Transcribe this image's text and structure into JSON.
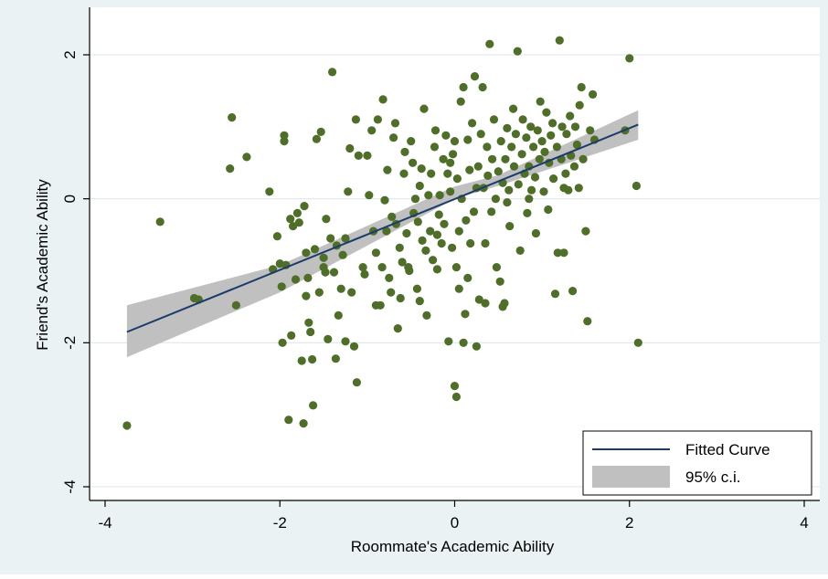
{
  "chart_data": {
    "type": "scatter",
    "xlabel": "Roommate's Academic Ability",
    "ylabel": "Friend's Academic Ability",
    "xlim": [
      -4,
      4
    ],
    "ylim": [
      -4,
      2.2
    ],
    "xticks": [
      "-4",
      "-2",
      "0",
      "2",
      "4"
    ],
    "yticks": [
      "-4",
      "-2",
      "0",
      "2"
    ],
    "xtick_values": [
      -4,
      -2,
      0,
      2,
      4
    ],
    "ytick_values": [
      -4,
      -2,
      0,
      2
    ],
    "grid": "horizontal",
    "legend_position": "bottom-right",
    "legend": [
      {
        "label": "Fitted Curve",
        "kind": "line",
        "color": "#1a3b6b"
      },
      {
        "label": "95% c.i.",
        "kind": "band",
        "color": "#c0c0c0"
      }
    ],
    "colors": {
      "points": "#4f6e2a",
      "fit_line": "#1a3b6b",
      "ci_band": "#c0c0c0",
      "outer_background": "#eaf2f3",
      "plot_background": "#ffffff",
      "grid": "#e2ecee"
    },
    "fitted_curve": {
      "x": [
        -3.75,
        2.1
      ],
      "y": [
        -1.85,
        1.03
      ]
    },
    "ci_band": {
      "x": [
        -3.75,
        -2,
        0,
        0.5,
        2.1
      ],
      "lower": [
        -2.2,
        -1.3,
        0,
        0.18,
        0.82
      ],
      "upper": [
        -1.48,
        -0.92,
        0.17,
        0.33,
        1.23
      ]
    },
    "series": [
      {
        "points": [
          [
            -3.75,
            -3.15
          ],
          [
            -3.37,
            -0.32
          ],
          [
            -2.98,
            -1.38
          ],
          [
            -2.93,
            -1.4
          ],
          [
            -2.57,
            0.42
          ],
          [
            -2.55,
            1.13
          ],
          [
            -2.5,
            -1.48
          ],
          [
            -2.38,
            0.58
          ],
          [
            -2.12,
            0.1
          ],
          [
            -2.08,
            -0.98
          ],
          [
            -2.03,
            -0.52
          ],
          [
            -2.0,
            -0.9
          ],
          [
            -1.98,
            -1.22
          ],
          [
            -1.97,
            -2.0
          ],
          [
            -1.95,
            0.8
          ],
          [
            -1.95,
            0.88
          ],
          [
            -1.93,
            -0.92
          ],
          [
            -1.9,
            -3.07
          ],
          [
            -1.88,
            -0.28
          ],
          [
            -1.87,
            -1.9
          ],
          [
            -1.85,
            -0.38
          ],
          [
            -1.82,
            -1.12
          ],
          [
            -1.8,
            -0.2
          ],
          [
            -1.78,
            -0.33
          ],
          [
            -1.75,
            -2.25
          ],
          [
            -1.73,
            -3.12
          ],
          [
            -1.72,
            -0.1
          ],
          [
            -1.7,
            -0.75
          ],
          [
            -1.68,
            -1.1
          ],
          [
            -1.67,
            -1.72
          ],
          [
            -1.65,
            -1.85
          ],
          [
            -1.63,
            -2.23
          ],
          [
            -1.62,
            -2.87
          ],
          [
            -1.6,
            -0.7
          ],
          [
            -1.58,
            0.83
          ],
          [
            -1.55,
            -1.3
          ],
          [
            -1.53,
            0.93
          ],
          [
            -1.5,
            -0.82
          ],
          [
            -1.48,
            -1.02
          ],
          [
            -1.47,
            -0.28
          ],
          [
            -1.45,
            -1.95
          ],
          [
            -1.42,
            -0.55
          ],
          [
            -1.4,
            1.76
          ],
          [
            -1.38,
            -1.02
          ],
          [
            -1.36,
            -2.22
          ],
          [
            -1.35,
            -0.65
          ],
          [
            -1.33,
            -1.62
          ],
          [
            -1.3,
            -1.25
          ],
          [
            -1.28,
            -0.78
          ],
          [
            -1.25,
            -1.98
          ],
          [
            -1.22,
            0.1
          ],
          [
            -1.2,
            0.7
          ],
          [
            -1.18,
            -1.3
          ],
          [
            -1.15,
            -2.05
          ],
          [
            -1.13,
            1.1
          ],
          [
            -1.12,
            -2.55
          ],
          [
            -1.1,
            0.6
          ],
          [
            -1.05,
            -0.95
          ],
          [
            -1.03,
            -1.05
          ],
          [
            -1.0,
            0.6
          ],
          [
            -0.98,
            0.05
          ],
          [
            -0.95,
            0.95
          ],
          [
            -0.93,
            -0.45
          ],
          [
            -0.9,
            -0.75
          ],
          [
            -0.88,
            1.1
          ],
          [
            -0.85,
            -1.48
          ],
          [
            -0.83,
            -0.95
          ],
          [
            -0.82,
            1.38
          ],
          [
            -0.8,
            -0.02
          ],
          [
            -0.78,
            -0.45
          ],
          [
            -0.77,
            0.4
          ],
          [
            -0.75,
            -1.1
          ],
          [
            -0.73,
            -1.3
          ],
          [
            -0.72,
            -0.25
          ],
          [
            -0.7,
            0.85
          ],
          [
            -0.68,
            1.05
          ],
          [
            -0.67,
            -0.35
          ],
          [
            -0.65,
            -1.8
          ],
          [
            -0.63,
            -0.68
          ],
          [
            -0.6,
            -0.88
          ],
          [
            -0.58,
            0.35
          ],
          [
            -0.57,
            0.65
          ],
          [
            -0.55,
            -0.48
          ],
          [
            -0.53,
            -0.95
          ],
          [
            -0.52,
            -1.0
          ],
          [
            -0.5,
            0.8
          ],
          [
            -0.48,
            0.5
          ],
          [
            -0.47,
            -0.2
          ],
          [
            -0.45,
            0.0
          ],
          [
            -0.43,
            -1.25
          ],
          [
            -0.42,
            -0.32
          ],
          [
            -0.4,
            0.18
          ],
          [
            -0.38,
            0.42
          ],
          [
            -0.37,
            -0.58
          ],
          [
            -0.35,
            1.25
          ],
          [
            -0.33,
            -0.72
          ],
          [
            -0.32,
            -1.62
          ],
          [
            -0.3,
            0.05
          ],
          [
            -0.28,
            -0.45
          ],
          [
            -0.27,
            0.35
          ],
          [
            -0.25,
            -0.85
          ],
          [
            -0.23,
            0.72
          ],
          [
            -0.22,
            0.95
          ],
          [
            -0.2,
            -0.5
          ],
          [
            -0.18,
            -0.22
          ],
          [
            -0.17,
            0.05
          ],
          [
            -0.15,
            -0.62
          ],
          [
            -0.13,
            0.55
          ],
          [
            -0.12,
            -0.35
          ],
          [
            -0.1,
            0.88
          ],
          [
            -0.08,
            0.35
          ],
          [
            -0.07,
            -1.98
          ],
          [
            -0.05,
            0.1
          ],
          [
            -0.03,
            -0.68
          ],
          [
            -0.02,
            0.62
          ],
          [
            0.0,
            -2.6
          ],
          [
            0.0,
            0.8
          ],
          [
            0.02,
            -2.75
          ],
          [
            0.02,
            -0.95
          ],
          [
            0.03,
            0.28
          ],
          [
            0.05,
            -0.45
          ],
          [
            0.07,
            1.35
          ],
          [
            0.08,
            0.0
          ],
          [
            0.1,
            -2.0
          ],
          [
            0.1,
            1.55
          ],
          [
            0.12,
            -1.6
          ],
          [
            0.13,
            -0.3
          ],
          [
            0.15,
            0.82
          ],
          [
            0.17,
            0.4
          ],
          [
            0.18,
            -0.62
          ],
          [
            0.2,
            1.05
          ],
          [
            0.22,
            -0.18
          ],
          [
            0.23,
            1.7
          ],
          [
            0.25,
            -2.05
          ],
          [
            0.25,
            0.15
          ],
          [
            0.27,
            0.45
          ],
          [
            0.28,
            -1.4
          ],
          [
            0.3,
            0.9
          ],
          [
            0.32,
            1.55
          ],
          [
            0.33,
            0.15
          ],
          [
            0.35,
            -0.62
          ],
          [
            0.37,
            0.72
          ],
          [
            0.38,
            0.32
          ],
          [
            0.4,
            2.15
          ],
          [
            0.42,
            -0.18
          ],
          [
            0.43,
            0.55
          ],
          [
            0.45,
            1.1
          ],
          [
            0.47,
            0.0
          ],
          [
            0.48,
            -0.95
          ],
          [
            0.5,
            0.38
          ],
          [
            0.52,
            -1.15
          ],
          [
            0.53,
            0.8
          ],
          [
            0.55,
            0.22
          ],
          [
            0.57,
            -1.45
          ],
          [
            0.58,
            0.55
          ],
          [
            0.6,
            0.98
          ],
          [
            0.62,
            0.12
          ],
          [
            0.63,
            -0.38
          ],
          [
            0.65,
            0.72
          ],
          [
            0.67,
            1.25
          ],
          [
            0.68,
            0.45
          ],
          [
            0.7,
            0.9
          ],
          [
            0.72,
            2.05
          ],
          [
            0.73,
            0.2
          ],
          [
            0.75,
            -0.72
          ],
          [
            0.77,
            0.62
          ],
          [
            0.78,
            1.1
          ],
          [
            0.8,
            0.35
          ],
          [
            0.82,
            0.85
          ],
          [
            0.83,
            -0.2
          ],
          [
            0.85,
            0.45
          ],
          [
            0.87,
            1.0
          ],
          [
            0.88,
            0.12
          ],
          [
            0.9,
            0.72
          ],
          [
            0.92,
            0.3
          ],
          [
            0.93,
            -0.48
          ],
          [
            0.95,
            0.95
          ],
          [
            0.97,
            0.55
          ],
          [
            0.98,
            1.35
          ],
          [
            1.0,
            0.8
          ],
          [
            1.02,
            0.1
          ],
          [
            1.03,
            0.65
          ],
          [
            1.05,
            1.2
          ],
          [
            1.07,
            -0.15
          ],
          [
            1.08,
            0.5
          ],
          [
            1.1,
            0.88
          ],
          [
            1.12,
            1.05
          ],
          [
            1.13,
            0.28
          ],
          [
            1.15,
            -1.32
          ],
          [
            1.17,
            0.72
          ],
          [
            1.18,
            -0.75
          ],
          [
            1.2,
            2.2
          ],
          [
            1.22,
            0.55
          ],
          [
            1.23,
            1.0
          ],
          [
            1.25,
            -0.75
          ],
          [
            1.27,
            0.35
          ],
          [
            1.28,
            0.9
          ],
          [
            1.3,
            0.12
          ],
          [
            1.32,
            1.15
          ],
          [
            1.33,
            0.6
          ],
          [
            1.35,
            -1.28
          ],
          [
            1.37,
            0.45
          ],
          [
            1.38,
            1.0
          ],
          [
            1.4,
            0.75
          ],
          [
            1.42,
            0.15
          ],
          [
            1.43,
            1.3
          ],
          [
            1.45,
            1.55
          ],
          [
            1.47,
            0.55
          ],
          [
            1.5,
            -0.45
          ],
          [
            1.52,
            -1.7
          ],
          [
            1.55,
            0.95
          ],
          [
            1.58,
            1.45
          ],
          [
            1.6,
            0.82
          ],
          [
            1.95,
            0.95
          ],
          [
            2.0,
            1.95
          ],
          [
            2.08,
            0.18
          ],
          [
            2.1,
            -2.0
          ],
          [
            -0.62,
            -1.38
          ],
          [
            -0.9,
            -1.48
          ],
          [
            -0.4,
            -1.42
          ],
          [
            -0.2,
            -0.98
          ],
          [
            0.05,
            -1.25
          ],
          [
            0.15,
            -1.1
          ],
          [
            0.35,
            -1.45
          ],
          [
            0.55,
            -1.5
          ],
          [
            -1.25,
            -0.55
          ],
          [
            -1.5,
            -0.95
          ],
          [
            -1.7,
            -1.35
          ],
          [
            -0.05,
            0.5
          ],
          [
            0.6,
            -0.05
          ],
          [
            0.85,
            0.0
          ],
          [
            1.25,
            0.15
          ]
        ]
      }
    ]
  }
}
